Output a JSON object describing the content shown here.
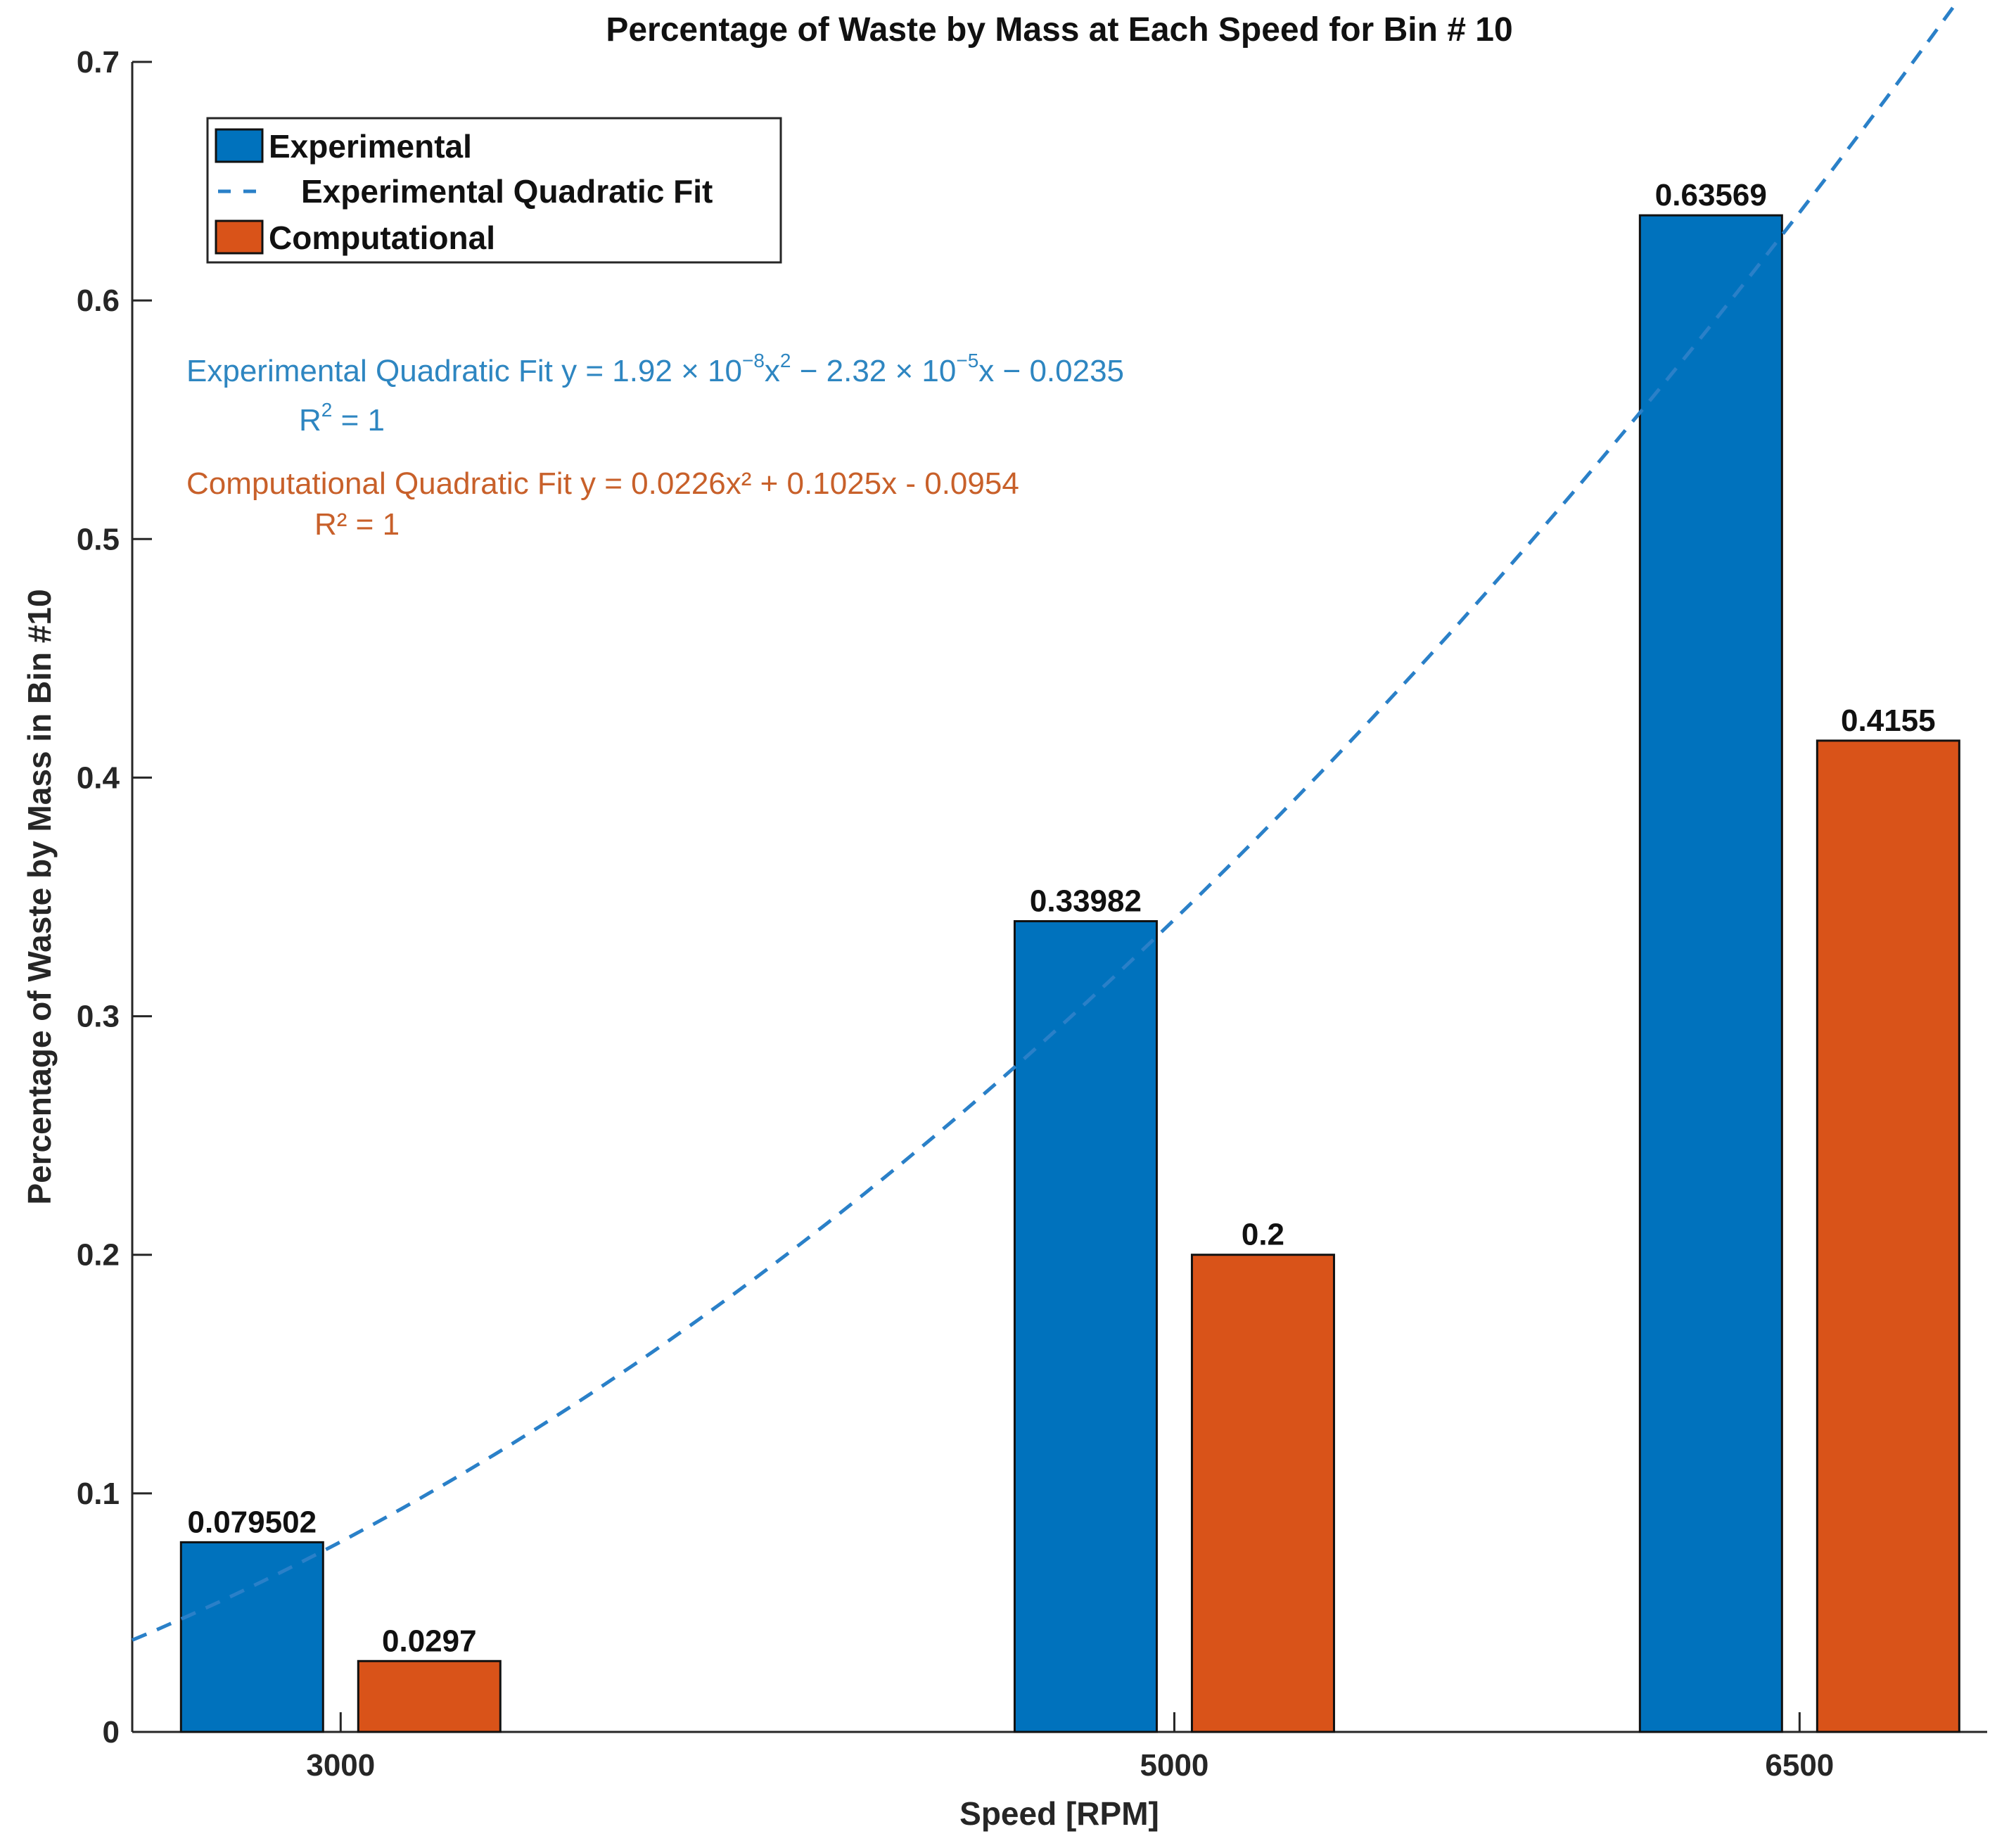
{
  "colors": {
    "experimental": "#0072BD",
    "computational": "#D95319",
    "fit_line": "#2A80C8",
    "eq_experimental": "#2E86C1",
    "eq_computational": "#C8602A"
  },
  "chart_data": {
    "type": "bar",
    "title": "Percentage of Waste by Mass at Each Speed for Bin # 10",
    "xlabel": "Speed [RPM]",
    "ylabel": "Percentage of Waste by Mass in Bin #10",
    "ylim": [
      0,
      0.7
    ],
    "yticks": [
      0,
      0.1,
      0.2,
      0.3,
      0.4,
      0.5,
      0.6,
      0.7
    ],
    "ytick_labels": [
      "0",
      "0.1",
      "0.2",
      "0.3",
      "0.4",
      "0.5",
      "0.6",
      "0.7"
    ],
    "categories": [
      "3000",
      "5000",
      "6500"
    ],
    "x": [
      3000,
      5000,
      6500
    ],
    "xlim": [
      2500,
      6950
    ],
    "series": [
      {
        "name": "Experimental",
        "values": [
          0.079502,
          0.33982,
          0.63569
        ],
        "labels": [
          "0.079502",
          "0.33982",
          "0.63569"
        ]
      },
      {
        "name": "Computational",
        "values": [
          0.0297,
          0.2,
          0.4155
        ],
        "labels": [
          "0.0297",
          "0.2",
          "0.4155"
        ]
      }
    ],
    "fit": {
      "name": "Experimental Quadratic Fit",
      "a": 1.92e-08,
      "b": -2.32e-05,
      "c": -0.0235,
      "x_range": [
        2500,
        6950
      ]
    },
    "legend": {
      "position": "top-left",
      "entries": [
        "Experimental",
        "Experimental Quadratic Fit",
        "Computational"
      ]
    },
    "annotations": {
      "exp_fit_prefix": "Experimental Quadratic Fit  y = 1.92 × 10",
      "exp_fit_exp1": "−8",
      "exp_fit_mid": "x",
      "exp_fit_exp2": "2",
      "exp_fit_mid2": " − 2.32 × 10",
      "exp_fit_exp3": "−5",
      "exp_fit_suffix": "x − 0.0235",
      "exp_r2_prefix": "R",
      "exp_r2_exp": "2",
      "exp_r2_suffix": " = 1",
      "comp_fit": "Computational Quadratic Fit y = 0.0226x² + 0.1025x - 0.0954",
      "comp_r2": "R² = 1"
    }
  }
}
